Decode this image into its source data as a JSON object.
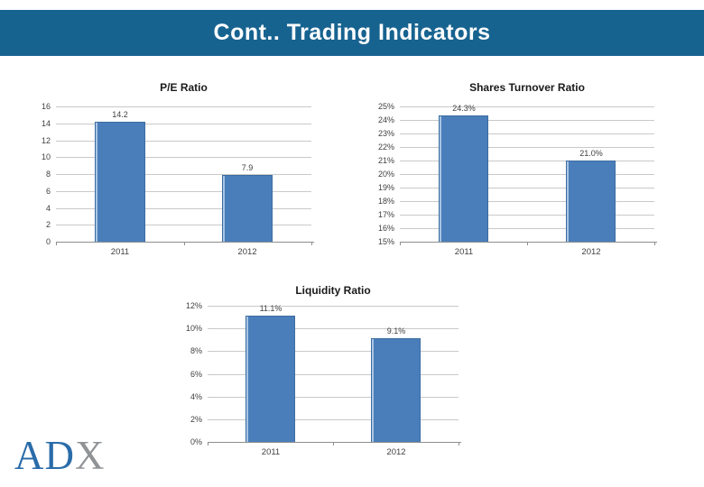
{
  "header": {
    "title": "Cont.. Trading Indicators",
    "bg_color": "#176390",
    "text_color": "#ffffff"
  },
  "logo": {
    "part1": "AD",
    "part2": "X",
    "part1_color": "#2A6CA9",
    "part2_color": "#909396"
  },
  "palette": {
    "bar_fill": "#4A7EBB",
    "bar_border": "#3B6CA0",
    "bar_highlight": "#A9C4E2",
    "gridline": "#C9C9C9",
    "axis": "#8E8E8E",
    "label_color": "#404040",
    "title_color": "#1a1a1a"
  },
  "chart_data": [
    {
      "type": "bar",
      "title": "P/E Ratio",
      "categories": [
        "2011",
        "2012"
      ],
      "values": [
        14.2,
        7.9
      ],
      "value_labels": [
        "14.2",
        "7.9"
      ],
      "ylim": [
        0,
        16
      ],
      "ytick_values": [
        16,
        14,
        12,
        10,
        8,
        6,
        4,
        2,
        0
      ],
      "ytick_labels": [
        "16",
        "14",
        "12",
        "10",
        "8",
        "6",
        "4",
        "2",
        "0"
      ],
      "grid": true,
      "legend": "none"
    },
    {
      "type": "bar",
      "title": "Shares Turnover Ratio",
      "categories": [
        "2011",
        "2012"
      ],
      "values": [
        24.3,
        21.0
      ],
      "value_labels": [
        "24.3%",
        "21.0%"
      ],
      "ylim": [
        15,
        25
      ],
      "ytick_values": [
        25,
        24,
        23,
        22,
        21,
        20,
        19,
        18,
        17,
        16,
        15
      ],
      "ytick_labels": [
        "25%",
        "24%",
        "23%",
        "22%",
        "21%",
        "20%",
        "19%",
        "18%",
        "17%",
        "16%",
        "15%"
      ],
      "grid": true,
      "legend": "none"
    },
    {
      "type": "bar",
      "title": "Liquidity Ratio",
      "categories": [
        "2011",
        "2012"
      ],
      "values": [
        11.1,
        9.1
      ],
      "value_labels": [
        "11.1%",
        "9.1%"
      ],
      "ylim": [
        0,
        12
      ],
      "ytick_values": [
        12,
        10,
        8,
        6,
        4,
        2,
        0
      ],
      "ytick_labels": [
        "12%",
        "10%",
        "8%",
        "6%",
        "4%",
        "2%",
        "0%"
      ],
      "grid": true,
      "legend": "none"
    }
  ]
}
